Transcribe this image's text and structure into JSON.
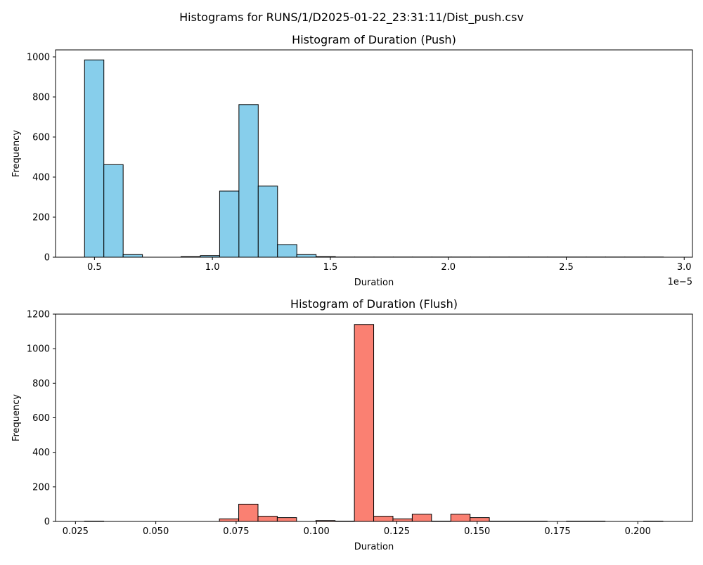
{
  "figure": {
    "suptitle": "Histograms for RUNS/1/D2025-01-22_23:31:11/Dist_push.csv"
  },
  "chart_data": [
    {
      "type": "bar",
      "title": "Histogram of Duration (Push)",
      "xlabel": "Duration",
      "ylabel": "Frequency",
      "x_offset_label": "1e−5",
      "xlim": [
        0.335,
        3.035
      ],
      "ylim": [
        0,
        1035
      ],
      "xticks": [
        {
          "value": 0.5,
          "label": "0.5"
        },
        {
          "value": 1.0,
          "label": "1.0"
        },
        {
          "value": 1.5,
          "label": "1.5"
        },
        {
          "value": 2.0,
          "label": "2.0"
        },
        {
          "value": 2.5,
          "label": "2.5"
        },
        {
          "value": 3.0,
          "label": "3.0"
        }
      ],
      "yticks": [
        {
          "value": 0,
          "label": "0"
        },
        {
          "value": 200,
          "label": "200"
        },
        {
          "value": 400,
          "label": "400"
        },
        {
          "value": 600,
          "label": "600"
        },
        {
          "value": 800,
          "label": "800"
        },
        {
          "value": 1000,
          "label": "1000"
        }
      ],
      "bin_start": 0.458,
      "bin_width": 0.0818,
      "values": [
        985,
        462,
        13,
        0,
        0,
        3,
        8,
        330,
        762,
        355,
        63,
        13,
        3,
        1,
        1,
        1,
        1,
        1,
        1,
        1,
        1,
        1,
        1,
        1,
        1,
        1,
        1,
        1,
        1,
        1
      ],
      "fill": "#87ceeb",
      "edge": "#000000",
      "grid": false
    },
    {
      "type": "bar",
      "title": "Histogram of Duration (Flush)",
      "xlabel": "Duration",
      "ylabel": "Frequency",
      "xlim": [
        0.0188,
        0.217
      ],
      "ylim": [
        0,
        1200
      ],
      "xticks": [
        {
          "value": 0.025,
          "label": "0.025"
        },
        {
          "value": 0.05,
          "label": "0.050"
        },
        {
          "value": 0.075,
          "label": "0.075"
        },
        {
          "value": 0.1,
          "label": "0.100"
        },
        {
          "value": 0.125,
          "label": "0.125"
        },
        {
          "value": 0.15,
          "label": "0.150"
        },
        {
          "value": 0.175,
          "label": "0.175"
        },
        {
          "value": 0.2,
          "label": "0.200"
        }
      ],
      "yticks": [
        {
          "value": 0,
          "label": "0"
        },
        {
          "value": 200,
          "label": "200"
        },
        {
          "value": 400,
          "label": "400"
        },
        {
          "value": 600,
          "label": "600"
        },
        {
          "value": 800,
          "label": "800"
        },
        {
          "value": 1000,
          "label": "1000"
        },
        {
          "value": 1200,
          "label": "1200"
        }
      ],
      "bin_start": 0.0278,
      "bin_width": 0.006,
      "values": [
        2,
        0,
        0,
        0,
        0,
        0,
        0,
        15,
        100,
        30,
        22,
        0,
        5,
        2,
        1140,
        30,
        15,
        42,
        2,
        42,
        22,
        2,
        2,
        2,
        0,
        2,
        2,
        0,
        0,
        2
      ],
      "fill": "#fa8072",
      "edge": "#000000",
      "grid": false
    }
  ]
}
